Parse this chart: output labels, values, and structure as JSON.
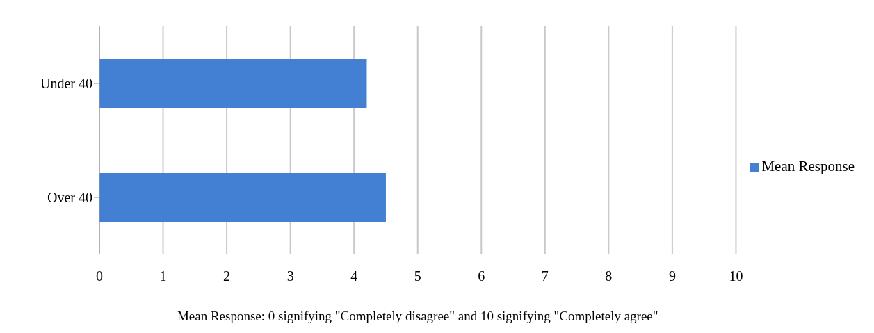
{
  "chart_data": {
    "type": "bar",
    "orientation": "horizontal",
    "categories": [
      "Under 40",
      "Over 40"
    ],
    "series": [
      {
        "name": "Mean Response",
        "color": "#4380d3",
        "values": [
          4.2,
          4.5
        ]
      }
    ],
    "xlim": [
      0,
      10
    ],
    "xticks": [
      0,
      1,
      2,
      3,
      4,
      5,
      6,
      7,
      8,
      9,
      10
    ],
    "xlabel": "Mean Response: 0 signifying \"Completely disagree\" and 10 signifying \"Completely agree\"",
    "grid": "x",
    "legend": "right"
  }
}
